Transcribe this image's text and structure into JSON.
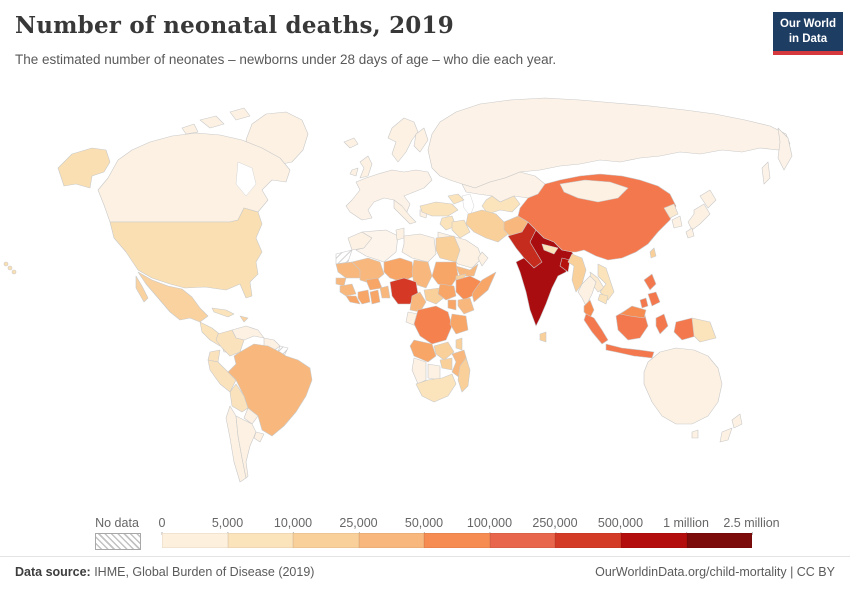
{
  "header": {
    "title": "Number of neonatal deaths, 2019",
    "subtitle": "The estimated number of neonates – newborns under 28 days of age – who die each year.",
    "logo_line1": "Our World",
    "logo_line2": "in Data",
    "logo_bg": "#1d3d63",
    "logo_accent": "#d5393d"
  },
  "legend": {
    "no_data_label": "No data",
    "tick_labels": [
      "0",
      "5,000",
      "10,000",
      "25,000",
      "50,000",
      "100,000",
      "250,000",
      "500,000",
      "1 million",
      "2.5 million"
    ]
  },
  "footer": {
    "source_label": "Data source:",
    "source_text": " IHME, Global Burden of Disease (2019)",
    "link_text": "OurWorldinData.org/child-mortality | CC BY"
  },
  "chart_data": {
    "type": "choropleth_map",
    "title": "Number of neonatal deaths, 2019",
    "year": 2019,
    "unit": "neonatal deaths per year",
    "legend_position": "bottom",
    "bins": [
      {
        "range": "0–5,000",
        "color": "#fdf0dc"
      },
      {
        "range": "5,000–10,000",
        "color": "#fbe3bb"
      },
      {
        "range": "10,000–25,000",
        "color": "#fad09a"
      },
      {
        "range": "25,000–50,000",
        "color": "#f8b87d"
      },
      {
        "range": "50,000–100,000",
        "color": "#f78c52"
      },
      {
        "range": "100,000–250,000",
        "color": "#e7664c"
      },
      {
        "range": "250,000–500,000",
        "color": "#d33b27"
      },
      {
        "range": "500,000–1 million",
        "color": "#b30d0d"
      },
      {
        "range": "1 million–2.5 million",
        "color": "#7c0b0c"
      }
    ],
    "no_data_regions": [
      "Western Sahara",
      "French Guiana"
    ],
    "region_colors": {
      "greenland": "#fcf1e3",
      "canada": "#fcf1e3",
      "usa": "#fadfb2",
      "mexico": "#f9d2a0",
      "central_america_north": "#fbe3bb",
      "central_america_south": "#fcf1e3",
      "cuba": "#fbe3bb",
      "hispaniola": "#f9d2a0",
      "venezuela": "#fcf1e3",
      "colombia": "#fae2bd",
      "guianas": "#fcf1e3",
      "ecuador": "#fae2bd",
      "peru": "#fae2bd",
      "brazil": "#f8b87d",
      "bolivia": "#fae2bd",
      "paraguay": "#fcf1e3",
      "chile": "#fcf1e3",
      "argentina": "#fcf1e3",
      "uruguay": "#fcf1e3",
      "iceland": "#fcf1e3",
      "uk": "#fcf1e3",
      "ireland": "#fcf1e3",
      "scandinavia": "#fcf1e3",
      "finland": "#fcf1e3",
      "europe_mainland": "#fcf2e7",
      "italy": "#fcf1e3",
      "greece": "#fcf1e3",
      "russia": "#fcf2e7",
      "kazakhstan": "#fcf2e7",
      "central_asia": "#fbe3bb",
      "caucasus": "#fbe3bb",
      "turkey": "#fbe3bb",
      "levant": "#fbe3bb",
      "iraq": "#fbe3bb",
      "iran": "#fad09a",
      "saudi": "#fcf1e3",
      "yemen": "#f8b87d",
      "oman": "#fcf1e3",
      "afghanistan": "#f8b87d",
      "pakistan": "#c52c1e",
      "india": "#a90d10",
      "sri_lanka": "#fad09a",
      "nepal": "#fbe3bb",
      "bangladesh": "#b5120e",
      "china": "#f4784e",
      "mongolia": "#fcf1e3",
      "north_korea": "#fbe9d0",
      "south_korea": "#fcf1e3",
      "japan": "#fcf1e3",
      "taiwan": "#fad09a",
      "myanmar": "#fad09a",
      "thailand": "#fcf1e3",
      "laos": "#fbe9d0",
      "vietnam": "#fbe3bb",
      "cambodia": "#fbe3bb",
      "malay_peninsula": "#f78c52",
      "philippines": "#f4784e",
      "sumatra": "#f4784e",
      "java": "#f4784e",
      "borneo_id": "#f4784e",
      "borneo_my": "#f78c52",
      "sulawesi": "#f4784e",
      "west_papua": "#f4784e",
      "png": "#fbe3bb",
      "australia": "#fcf1e3",
      "tasmania": "#fcf1e3",
      "nz": "#fcf1e3",
      "morocco": "#fcf1e3",
      "algeria": "#fdf5ec",
      "tunisia": "#fcf1e3",
      "libya": "#fcf1e3",
      "egypt": "#fad09a",
      "mauritania": "#f8b87d",
      "mali": "#f8b87d",
      "niger": "#f8a568",
      "chad": "#f8b87d",
      "sudan": "#f8a568",
      "eritrea": "#fad09a",
      "senegal": "#f8b87d",
      "guinea": "#f8b87d",
      "liberia_sl": "#f8a568",
      "ivory_coast": "#f8a568",
      "ghana": "#f8a568",
      "burkina": "#f8a568",
      "benin_togo": "#f8b87d",
      "nigeria": "#d53926",
      "cameroon": "#f8b87d",
      "car": "#fad09a",
      "south_sudan": "#f8a568",
      "ethiopia": "#f78c52",
      "somalia": "#f8a568",
      "kenya": "#f8b87d",
      "uganda": "#f8a568",
      "congo_gabon": "#fcf1e3",
      "drc": "#f5814f",
      "tanzania": "#f8a568",
      "angola": "#f8a568",
      "zambia": "#fad09a",
      "malawi": "#fad09a",
      "mozambique": "#f8b87d",
      "zimbabwe": "#fad09a",
      "botswana": "#fcf1e3",
      "namibia": "#fcf1e3",
      "south_africa": "#fbe3bb",
      "madagascar": "#fad09a"
    }
  }
}
